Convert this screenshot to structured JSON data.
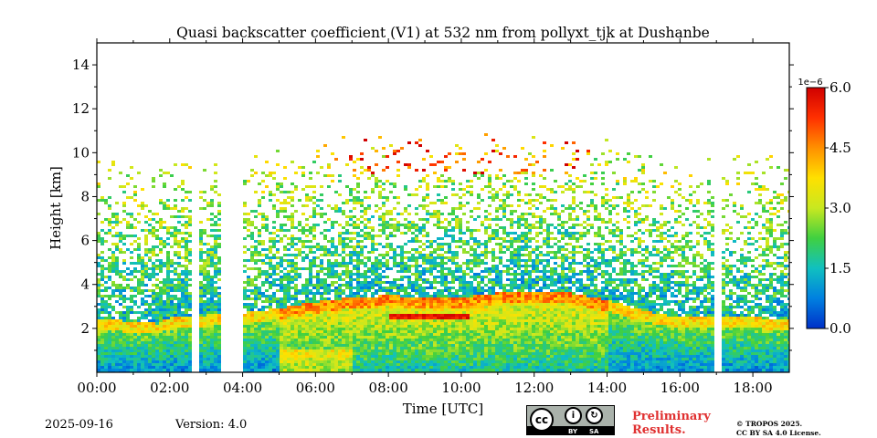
{
  "chart_data": {
    "type": "heatmap",
    "title": "Quasi backscatter coefficient (V1) at 532 nm from pollyxt_tjk at Dushanbe",
    "xlabel": "Time [UTC]",
    "ylabel": "Height [km]",
    "xlim_hours": [
      0,
      19
    ],
    "ylim_km": [
      0,
      15
    ],
    "x_ticks": [
      {
        "value": 0,
        "label": "00:00"
      },
      {
        "value": 2,
        "label": "02:00"
      },
      {
        "value": 4,
        "label": "04:00"
      },
      {
        "value": 6,
        "label": "06:00"
      },
      {
        "value": 8,
        "label": "08:00"
      },
      {
        "value": 10,
        "label": "10:00"
      },
      {
        "value": 12,
        "label": "12:00"
      },
      {
        "value": 14,
        "label": "14:00"
      },
      {
        "value": 16,
        "label": "16:00"
      },
      {
        "value": 18,
        "label": "18:00"
      }
    ],
    "y_ticks": [
      {
        "value": 2,
        "label": "2"
      },
      {
        "value": 4,
        "label": "4"
      },
      {
        "value": 6,
        "label": "6"
      },
      {
        "value": 8,
        "label": "8"
      },
      {
        "value": 10,
        "label": "10"
      },
      {
        "value": 12,
        "label": "12"
      },
      {
        "value": 14,
        "label": "14"
      }
    ],
    "colorbar": {
      "min": 0.0,
      "max": 6.0,
      "scale_label": "1e−6",
      "ticks": [
        {
          "value": 0.0,
          "label": "0.0"
        },
        {
          "value": 1.5,
          "label": "1.5"
        },
        {
          "value": 3.0,
          "label": "3.0"
        },
        {
          "value": 4.5,
          "label": "4.5"
        },
        {
          "value": 6.0,
          "label": "6.0"
        }
      ],
      "colors": [
        "#0030c8",
        "#0080e0",
        "#10c0c0",
        "#40d040",
        "#c8e820",
        "#ffe000",
        "#ff9000",
        "#ff3000",
        "#d00000"
      ]
    },
    "layer_top_km": [
      [
        0,
        2.4
      ],
      [
        1.4,
        2.3
      ],
      [
        1.7,
        2.2
      ],
      [
        2.0,
        2.5
      ],
      [
        3.0,
        2.6
      ],
      [
        4.0,
        2.7
      ],
      [
        5.0,
        2.9
      ],
      [
        6.0,
        3.2
      ],
      [
        7.0,
        3.4
      ],
      [
        8.0,
        3.5
      ],
      [
        9.0,
        3.4
      ],
      [
        10.0,
        3.4
      ],
      [
        11.0,
        3.6
      ],
      [
        12.0,
        3.7
      ],
      [
        13.0,
        3.6
      ],
      [
        14.0,
        3.3
      ],
      [
        15.0,
        2.8
      ],
      [
        16.0,
        2.5
      ],
      [
        17.0,
        2.6
      ],
      [
        18.0,
        2.5
      ],
      [
        19.0,
        2.4
      ]
    ],
    "data_gaps_hours": [
      [
        2.62,
        2.8
      ],
      [
        3.45,
        4.0
      ],
      [
        4.48,
        4.55
      ],
      [
        5.98,
        6.05
      ],
      [
        15.42,
        15.45
      ],
      [
        16.93,
        17.1
      ]
    ],
    "high_backscatter_feature": {
      "time_hours": [
        8.0,
        10.2
      ],
      "height_km": [
        2.4,
        2.7
      ]
    }
  },
  "footer": {
    "date": "2025-09-16",
    "version": "Version: 4.0",
    "cc_by": "BY",
    "cc_sa": "SA",
    "cc": "cc",
    "preliminary_line1": "Preliminary",
    "preliminary_line2": "Results.",
    "copyright_line1": "© TROPOS 2025.",
    "copyright_line2": "CC BY SA 4.0 License."
  }
}
